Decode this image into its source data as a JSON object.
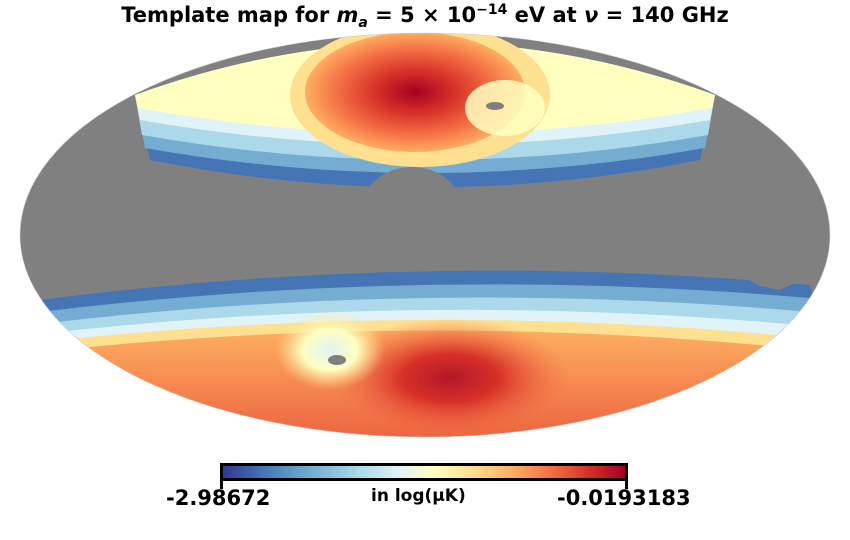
{
  "title": {
    "prefix": "Template map for ",
    "var": "m",
    "var_sub": "a",
    "mid": " =  5 × 10",
    "exp": "−14",
    "unit": " eV at ",
    "nu": "ν",
    "freq": " = 140 GHz"
  },
  "colorbar": {
    "min": "-2.98672",
    "max": "-0.0193183",
    "label": "in log(μK)",
    "colormap": [
      "#313695",
      "#4575b4",
      "#74add1",
      "#abd9e9",
      "#e0f3f8",
      "#ffffbf",
      "#fee090",
      "#fdae61",
      "#f46d43",
      "#d73027",
      "#a50026"
    ]
  },
  "mask_color": "#808080"
}
